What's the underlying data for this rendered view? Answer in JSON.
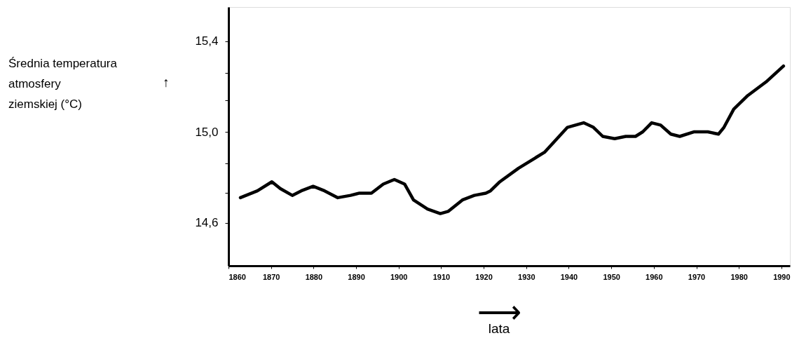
{
  "chart_data": {
    "type": "line",
    "xlabel": "lata",
    "annotations": [
      "Średnia temperatura atmosfery ziemskiej (°C)",
      "↑",
      "⟶"
    ],
    "x": [
      1862.8,
      1866.8,
      1870.2,
      1872.2,
      1875,
      1877.1,
      1879.9,
      1882.6,
      1885.7,
      1888.7,
      1890.8,
      1893.6,
      1896.4,
      1899,
      1901.4,
      1903.5,
      1906.8,
      1909.8,
      1911.7,
      1915,
      1917.8,
      1920.5,
      1921.6,
      1923.8,
      1928.2,
      1934.3,
      1939.7,
      1943.5,
      1945.8,
      1948,
      1950.8,
      1953.4,
      1955.7,
      1957.4,
      1959.5,
      1961.6,
      1964,
      1966.1,
      1969.4,
      1972.7,
      1975.2,
      1976.5,
      1978.8,
      1982.1,
      1986.4,
      1990.5
    ],
    "series": [
      {
        "color": "#000000",
        "values": [
          14.71,
          14.74,
          14.78,
          14.75,
          14.72,
          14.74,
          14.76,
          14.74,
          14.71,
          14.72,
          14.73,
          14.73,
          14.77,
          14.79,
          14.77,
          14.7,
          14.66,
          14.64,
          14.65,
          14.7,
          14.72,
          14.73,
          14.74,
          14.78,
          14.84,
          14.91,
          15.02,
          15.04,
          15.02,
          14.98,
          14.97,
          14.98,
          14.98,
          15.0,
          15.04,
          15.03,
          14.99,
          14.98,
          15.0,
          15.0,
          14.99,
          15.02,
          15.1,
          15.16,
          15.22,
          15.29
        ]
      }
    ],
    "xlim": [
      1860,
      1992
    ],
    "xticks": [
      1860,
      1870,
      1880,
      1890,
      1900,
      1910,
      1920,
      1930,
      1940,
      1950,
      1960,
      1970,
      1980,
      1990
    ],
    "ylim": [
      14.41,
      15.55
    ],
    "yticks": [
      {
        "value": 14.6,
        "label": "14,6"
      },
      {
        "value": 14.73,
        "label": null
      },
      {
        "value": 14.86,
        "label": null
      },
      {
        "value": 15.0,
        "label": "15,0"
      },
      {
        "value": 15.14,
        "label": null
      },
      {
        "value": 15.26,
        "label": null
      },
      {
        "value": 15.4,
        "label": "15,4"
      }
    ],
    "grid": false,
    "marker": "none",
    "line_style": "solid"
  }
}
